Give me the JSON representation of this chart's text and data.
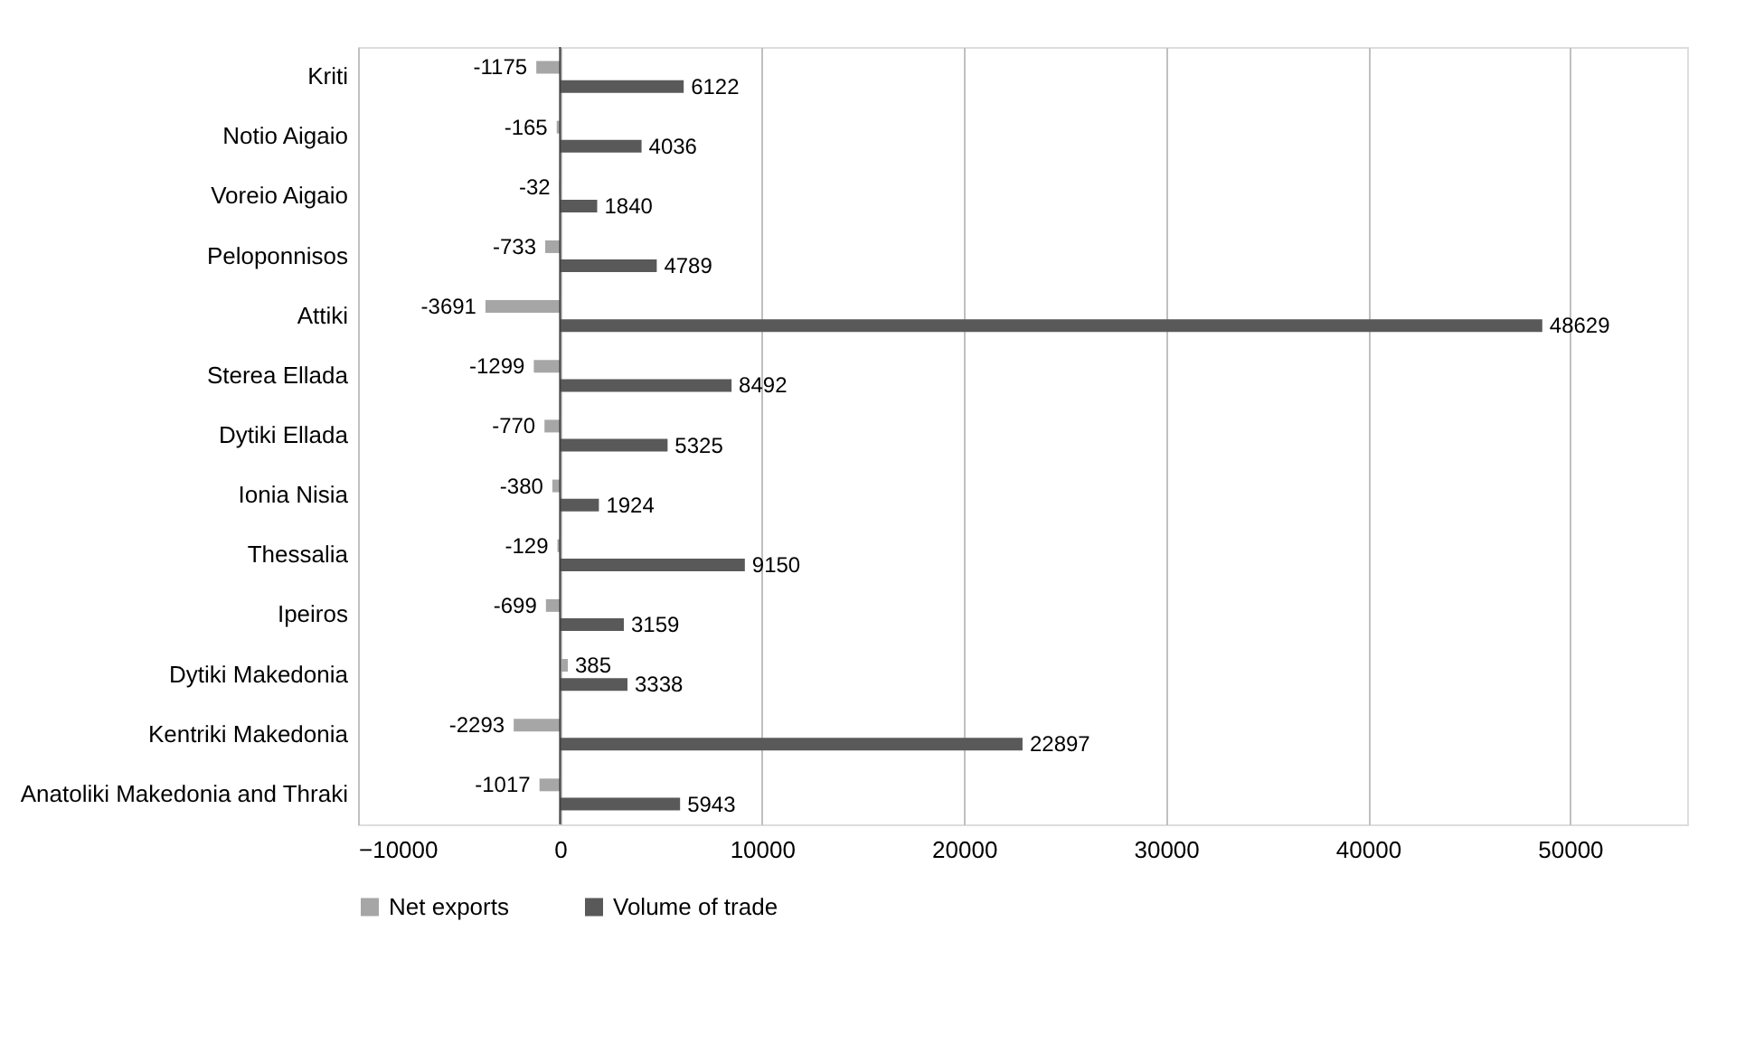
{
  "chart_data": {
    "type": "bar",
    "orientation": "horizontal",
    "categories": [
      "Kriti",
      "Notio Aigaio",
      "Voreio Aigaio",
      "Peloponnisos",
      "Attiki",
      "Sterea Ellada",
      "Dytiki Ellada",
      "Ionia Nisia",
      "Thessalia",
      "Ipeiros",
      "Dytiki Makedonia",
      "Kentriki Makedonia",
      "Anatoliki Makedonia and Thraki"
    ],
    "series": [
      {
        "name": "Net exports",
        "color": "#a6a6a6",
        "values": [
          -1175,
          -165,
          -32,
          -733,
          -3691,
          -1299,
          -770,
          -380,
          -129,
          -699,
          385,
          -2293,
          -1017
        ]
      },
      {
        "name": "Volume of trade",
        "color": "#595959",
        "values": [
          6122,
          4036,
          1840,
          4789,
          48629,
          8492,
          5325,
          1924,
          9150,
          3159,
          3338,
          22897,
          5943
        ]
      }
    ],
    "xlim": [
      -10000,
      55800
    ],
    "xticks": [
      -10000,
      0,
      10000,
      20000,
      30000,
      40000,
      50000
    ],
    "grid": "x",
    "legend": "bottom",
    "data_labels": true
  }
}
